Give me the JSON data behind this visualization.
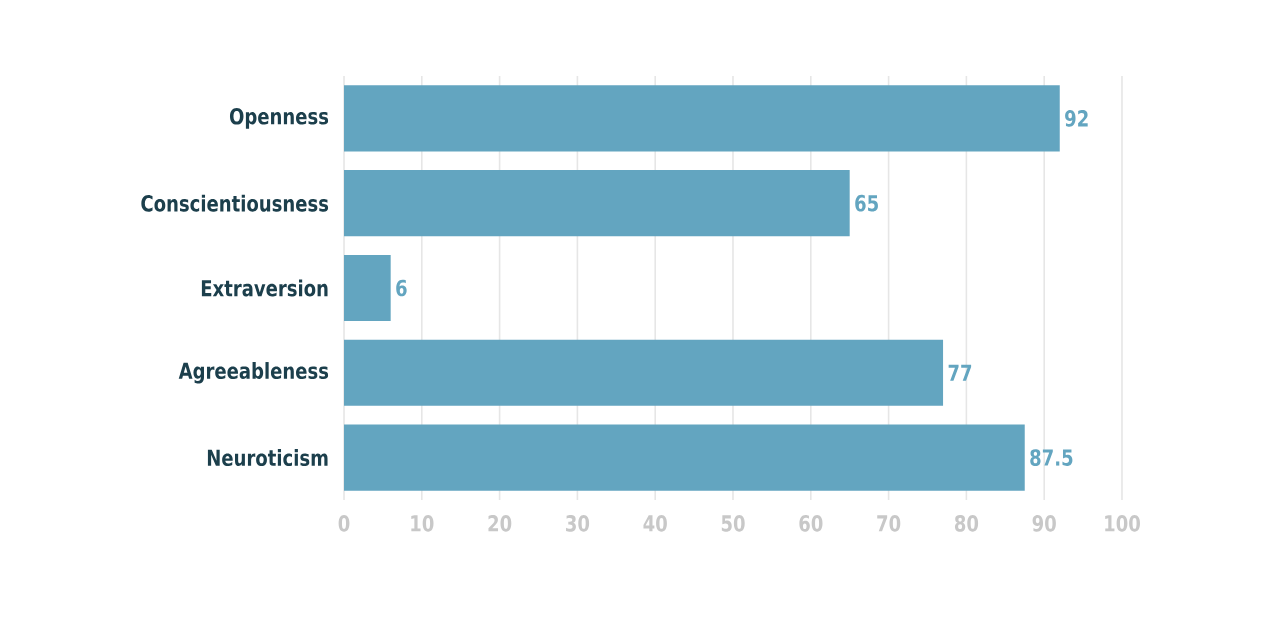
{
  "chart_data": {
    "type": "bar",
    "orientation": "horizontal",
    "categories": [
      "Openness",
      "Conscientiousness",
      "Extraversion",
      "Agreeableness",
      "Neuroticism"
    ],
    "values": [
      92,
      65,
      6,
      77,
      87.5
    ],
    "color": "#63a5c0",
    "xlim": [
      0,
      100
    ],
    "xticks": [
      0,
      10,
      20,
      30,
      40,
      50,
      60,
      70,
      80,
      90,
      100
    ],
    "grid": "x",
    "data_labels": true
  }
}
